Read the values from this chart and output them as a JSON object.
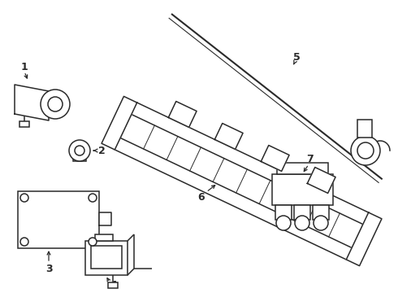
{
  "bg_color": "#ffffff",
  "line_color": "#2a2a2a",
  "lw": 1.1,
  "fig_width": 4.9,
  "fig_height": 3.6,
  "dpi": 100
}
